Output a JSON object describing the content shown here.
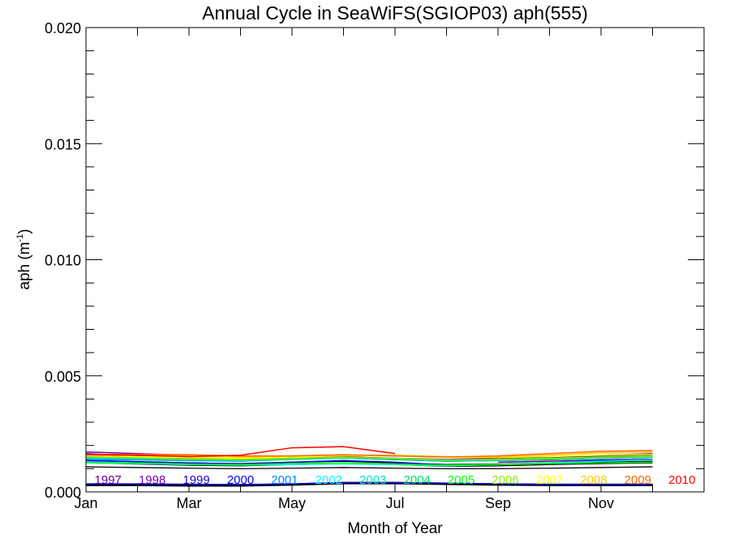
{
  "chart_data": {
    "type": "line",
    "title": "Annual Cycle in SeaWiFS(SGIOP03) aph(555)",
    "xlabel": "Month of Year",
    "ylabel_main": "aph (m",
    "ylabel_sup": "-1",
    "ylabel_close": ")",
    "xlim": [
      1,
      12
    ],
    "ylim": [
      0,
      0.02
    ],
    "x_ticks": [
      {
        "value": 1,
        "label": "Jan"
      },
      {
        "value": 3,
        "label": "Mar"
      },
      {
        "value": 5,
        "label": "May"
      },
      {
        "value": 7,
        "label": "Jul"
      },
      {
        "value": 9,
        "label": "Sep"
      },
      {
        "value": 11,
        "label": "Nov"
      }
    ],
    "y_ticks": [
      {
        "value": 0,
        "label": "0.000"
      },
      {
        "value": 0.005,
        "label": "0.005"
      },
      {
        "value": 0.01,
        "label": "0.010"
      },
      {
        "value": 0.015,
        "label": "0.015"
      },
      {
        "value": 0.02,
        "label": "0.020"
      }
    ],
    "legend_placement": "bottom, inside plot",
    "series": [
      {
        "name": "1997",
        "color": "#6a00a0",
        "x": [
          9,
          10,
          11,
          12
        ],
        "values": [
          0.00128,
          0.00132,
          0.00138,
          0.0014
        ]
      },
      {
        "name": "1998",
        "color": "#7800aa",
        "x": [
          1,
          2,
          3,
          4,
          5,
          6,
          7,
          8,
          9,
          10,
          11,
          12
        ],
        "values": [
          0.00172,
          0.00165,
          0.00158,
          0.00152,
          0.0015,
          0.0015,
          0.00145,
          0.0014,
          0.00145,
          0.0015,
          0.00158,
          0.00165
        ]
      },
      {
        "name": "1999",
        "color": "#2a00c8",
        "x": [
          1,
          2,
          3,
          4,
          5,
          6,
          7,
          8,
          9,
          10,
          11,
          12
        ],
        "values": [
          0.00165,
          0.00155,
          0.00145,
          0.0014,
          0.00145,
          0.0015,
          0.0014,
          0.00135,
          0.0014,
          0.0015,
          0.00155,
          0.0016
        ]
      },
      {
        "name": "2000",
        "color": "#0000ff",
        "x": [
          1,
          2,
          3,
          4,
          5,
          6,
          7,
          8,
          9,
          10,
          11,
          12
        ],
        "values": [
          0.00135,
          0.0013,
          0.00125,
          0.0012,
          0.00128,
          0.00135,
          0.00128,
          0.00115,
          0.00118,
          0.00125,
          0.00135,
          0.0014
        ]
      },
      {
        "name": "2001",
        "color": "#0088ff",
        "x": [
          1,
          2,
          3,
          4,
          5,
          6,
          7,
          8,
          9,
          10,
          11,
          12
        ],
        "values": [
          0.0014,
          0.00138,
          0.00135,
          0.00132,
          0.0014,
          0.00145,
          0.0014,
          0.00135,
          0.0014,
          0.00145,
          0.00148,
          0.0015
        ]
      },
      {
        "name": "2002",
        "color": "#00ffff",
        "x": [
          1,
          2,
          3,
          4,
          5,
          6,
          7,
          8,
          9,
          10,
          11,
          12
        ],
        "values": [
          0.00125,
          0.00122,
          0.00118,
          0.00115,
          0.00118,
          0.0012,
          0.00118,
          0.00112,
          0.00118,
          0.00125,
          0.00132,
          0.00138
        ]
      },
      {
        "name": "2003",
        "color": "#00e8c0",
        "x": [
          1,
          2,
          3,
          4,
          5,
          6,
          7,
          8,
          9,
          10,
          11,
          12
        ],
        "values": [
          0.00145,
          0.00142,
          0.00138,
          0.00135,
          0.0014,
          0.00145,
          0.0014,
          0.00132,
          0.00135,
          0.0014,
          0.00145,
          0.0015
        ]
      },
      {
        "name": "2004",
        "color": "#00e060",
        "x": [
          1,
          2,
          3,
          4,
          5,
          6,
          7,
          8,
          9,
          10,
          11,
          12
        ],
        "values": [
          0.0015,
          0.00145,
          0.0014,
          0.00138,
          0.00142,
          0.00148,
          0.00142,
          0.00135,
          0.00138,
          0.00142,
          0.00148,
          0.00152
        ]
      },
      {
        "name": "2005",
        "color": "#00ff00",
        "x": [
          1,
          2,
          3,
          4,
          5,
          6,
          7,
          8,
          9,
          10,
          11,
          12
        ],
        "values": [
          0.00128,
          0.00125,
          0.0012,
          0.00118,
          0.00122,
          0.00125,
          0.0012,
          0.00115,
          0.00118,
          0.00122,
          0.00125,
          0.00128
        ]
      },
      {
        "name": "2006",
        "color": "#90ee00",
        "x": [
          1,
          2,
          3,
          4,
          5,
          6,
          7,
          8,
          9,
          10,
          11,
          12
        ],
        "values": [
          0.0015,
          0.00148,
          0.00142,
          0.0014,
          0.00145,
          0.00148,
          0.00145,
          0.00138,
          0.0014,
          0.00145,
          0.0015,
          0.00155
        ]
      },
      {
        "name": "2007",
        "color": "#ffff00",
        "x": [
          1,
          2,
          3,
          4,
          5,
          6,
          7,
          8,
          9,
          10,
          11,
          12
        ],
        "values": [
          0.00158,
          0.00152,
          0.00148,
          0.00145,
          0.0015,
          0.00155,
          0.00155,
          0.0015,
          0.00148,
          0.00152,
          0.00158,
          0.00162
        ]
      },
      {
        "name": "2008",
        "color": "#ffc800",
        "x": [
          1,
          2,
          3,
          4,
          5,
          6,
          7,
          8,
          9,
          10,
          11,
          12
        ],
        "values": [
          0.0016,
          0.00158,
          0.00155,
          0.0015,
          0.00155,
          0.00158,
          0.00158,
          0.00152,
          0.0015,
          0.00158,
          0.00168,
          0.00172
        ]
      },
      {
        "name": "2009",
        "color": "#ff6400",
        "x": [
          1,
          2,
          3,
          4,
          5,
          6,
          7,
          8,
          9,
          10,
          11,
          12
        ],
        "values": [
          0.00162,
          0.00162,
          0.0016,
          0.00155,
          0.00155,
          0.0016,
          0.00155,
          0.0015,
          0.00155,
          0.00165,
          0.00175,
          0.00178
        ]
      },
      {
        "name": "2010",
        "color": "#ff0000",
        "x": [
          1,
          2,
          3,
          4,
          5,
          6,
          7
        ],
        "values": [
          0.0016,
          0.00158,
          0.00152,
          0.00158,
          0.0019,
          0.00195,
          0.00165
        ]
      }
    ],
    "extra_series": [
      {
        "color": "#000000",
        "width": 3,
        "x": [
          1,
          2,
          3,
          4,
          5,
          6,
          7,
          8,
          9,
          10,
          11,
          12
        ],
        "values": [
          0.00148,
          0.00145,
          0.0014,
          0.00138,
          0.00145,
          0.00148,
          0.00142,
          0.00135,
          0.00138,
          0.00142,
          0.00148,
          0.00152
        ]
      },
      {
        "color": "#000000",
        "width": 1.3,
        "x": [
          1,
          2,
          3,
          4,
          5,
          6,
          7,
          8,
          9,
          10,
          11,
          12
        ],
        "values": [
          0.00135,
          0.0013,
          0.00125,
          0.00122,
          0.00128,
          0.00132,
          0.00125,
          0.00118,
          0.0012,
          0.00125,
          0.00128,
          0.00132
        ]
      },
      {
        "color": "#000000",
        "width": 1.3,
        "x": [
          1,
          2,
          3,
          4,
          5,
          6,
          7,
          8,
          9,
          10,
          11,
          12
        ],
        "values": [
          0.00125,
          0.0012,
          0.00115,
          0.00112,
          0.00118,
          0.00122,
          0.00118,
          0.0011,
          0.00112,
          0.00118,
          0.00122,
          0.00125
        ]
      },
      {
        "color": "#000000",
        "width": 1.3,
        "x": [
          1,
          2,
          3,
          4,
          5,
          6,
          7,
          8,
          9,
          10,
          11,
          12
        ],
        "values": [
          0.00108,
          0.00105,
          0.00102,
          0.001,
          0.00102,
          0.00105,
          0.00102,
          0.001,
          0.001,
          0.00102,
          0.00105,
          0.00108
        ]
      },
      {
        "color": "#000000",
        "width": 3,
        "x": [
          1,
          2,
          3,
          4,
          5,
          6,
          7,
          8,
          9,
          10,
          11,
          12
        ],
        "values": [
          0.0003,
          0.0003,
          0.00028,
          0.00028,
          0.00032,
          0.00038,
          0.00038,
          0.00035,
          0.00032,
          0.0003,
          0.0003,
          0.0003
        ]
      },
      {
        "color": "#0000ff",
        "width": 1.3,
        "x": [
          1,
          2,
          3,
          4,
          5,
          6,
          7,
          8,
          9,
          10,
          11,
          12
        ],
        "values": [
          0.00035,
          0.00035,
          0.00033,
          0.00032,
          0.00035,
          0.0004,
          0.0004,
          0.00038,
          0.00035,
          0.00033,
          0.00033,
          0.00033
        ]
      }
    ]
  }
}
